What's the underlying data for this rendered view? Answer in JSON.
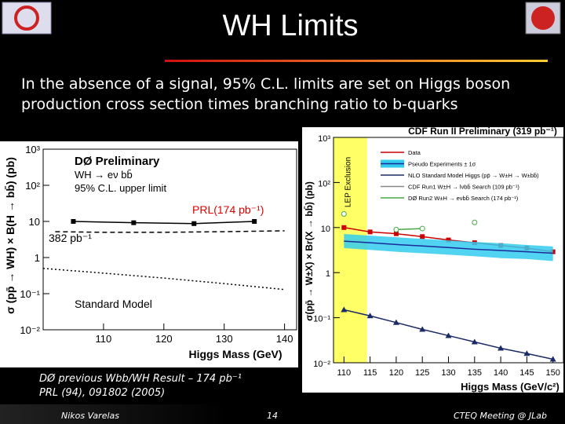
{
  "slide": {
    "title": "WH Limits",
    "text": "In the absence of a signal, 95% C.L. limits are set on Higgs boson production cross section times branching ratio to b-quarks",
    "note_lines": [
      "DØ previous Wbb/WH Result – 174 pb⁻¹",
      "PRL (94), 091802 (2005)"
    ],
    "footer": {
      "author": "Nikos Varelas",
      "page": "14",
      "event": "CTEQ Meeting @ JLab"
    }
  },
  "chart_data": [
    {
      "type": "line",
      "title_lines": [
        "DØ Preliminary",
        "WH → eν bb̄",
        "95% C.L. upper limit"
      ],
      "x_label": "Higgs Mass (GeV)",
      "y_label": "σ (pp̄ → WH) × B(H → bb̄) (pb)",
      "log_y": true,
      "xlim": [
        100,
        142
      ],
      "xticks": [
        110,
        120,
        130,
        140
      ],
      "ylim": [
        0.01,
        1000
      ],
      "yticks": [
        {
          "value": 0.01,
          "label": "10⁻²"
        },
        {
          "value": 0.1,
          "label": "10⁻¹"
        },
        {
          "value": 1,
          "label": "1"
        },
        {
          "value": 10,
          "label": "10"
        },
        {
          "value": 100,
          "label": "10²"
        },
        {
          "value": 1000,
          "label": "10³"
        }
      ],
      "series": [
        {
          "name": "PRL(174 pb⁻¹)",
          "color": "#000000",
          "style": "solid",
          "marker": "square",
          "x": [
            105,
            115,
            125,
            135
          ],
          "values": [
            10,
            9.2,
            8.7,
            10
          ]
        },
        {
          "name": "382 pb⁻¹",
          "color": "#000000",
          "style": "dashed",
          "marker": "none",
          "x": [
            102,
            110,
            120,
            130,
            140
          ],
          "values": [
            5.2,
            5,
            5,
            5.2,
            5.5
          ]
        },
        {
          "name": "Standard Model",
          "color": "#000000",
          "style": "dotted",
          "marker": "none",
          "x": [
            100,
            110,
            120,
            130,
            140
          ],
          "values": [
            0.5,
            0.37,
            0.27,
            0.19,
            0.13
          ]
        }
      ]
    },
    {
      "type": "line",
      "title": "CDF Run II Preliminary (319 pb⁻¹)",
      "x_label": "Higgs Mass (GeV/c²)",
      "y_label": "σ(pp̄ → W±X) × Br(X → bb̄) (pb)",
      "log_y": true,
      "band_label": "LEP Exclusion",
      "band_x": [
        108,
        114.4
      ],
      "band_color": "#ffff66",
      "xlim": [
        108,
        152
      ],
      "xticks": [
        110,
        115,
        120,
        125,
        130,
        135,
        140,
        145,
        150
      ],
      "ylim": [
        0.01,
        1000
      ],
      "yticks": [
        {
          "value": 0.01,
          "label": "10⁻²"
        },
        {
          "value": 0.1,
          "label": "10⁻¹"
        },
        {
          "value": 1,
          "label": "1"
        },
        {
          "value": 10,
          "label": "10"
        },
        {
          "value": 100,
          "label": "10²"
        },
        {
          "value": 1000,
          "label": "10³"
        }
      ],
      "x": [
        110,
        115,
        120,
        125,
        130,
        135,
        140,
        145,
        150
      ],
      "series": [
        {
          "name": "Data",
          "color": "#cc0000",
          "style": "solid",
          "marker": "square",
          "values": [
            10,
            8,
            7.3,
            6.3,
            5.3,
            4.6,
            4.0,
            3.5,
            2.9
          ]
        },
        {
          "name": "Pseudo Experiments ± 1σ",
          "color": "#1a2a99",
          "band_color": "#33ccee",
          "style": "band",
          "marker": "none",
          "values": [
            5.0,
            4.6,
            4.2,
            3.9,
            3.6,
            3.3,
            3.1,
            2.9,
            2.7
          ],
          "lower": [
            3.5,
            3.2,
            2.9,
            2.7,
            2.5,
            2.3,
            2.1,
            2.0,
            1.8
          ],
          "upper": [
            7.2,
            6.6,
            6.1,
            5.6,
            5.2,
            4.8,
            4.5,
            4.1,
            3.8
          ]
        },
        {
          "name": "NLO Standard Model Higgs (pp̄ → W±H → W±bb̄)",
          "color": "#1a2a66",
          "style": "solid",
          "marker": "triangle",
          "values": [
            0.15,
            0.11,
            0.078,
            0.055,
            0.04,
            0.029,
            0.021,
            0.016,
            0.012
          ]
        },
        {
          "name": "CDF Run1 W±H → lνbb̄ Search (109 pb⁻¹)",
          "color": "#888888",
          "style": "solid",
          "marker": "none",
          "values": [
            null,
            null,
            null,
            null,
            null,
            null,
            null,
            null,
            null
          ]
        },
        {
          "name": "DØ Run2 W±H → eνbb̄ Search (174 pb⁻¹)",
          "color": "#44aa44",
          "style": "solid",
          "marker": "circle",
          "values": [
            20,
            null,
            9,
            9.5,
            null,
            13,
            null,
            null,
            null
          ]
        }
      ]
    }
  ]
}
